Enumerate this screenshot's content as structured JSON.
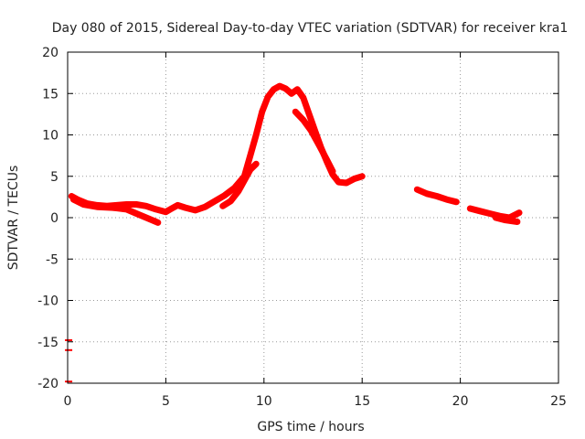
{
  "chart_data": {
    "type": "scatter",
    "title": "Day 080 of 2015, Sidereal Day-to-day VTEC variation (SDTVAR) for receiver kra1",
    "xlabel": "GPS time / hours",
    "ylabel": "SDTVAR / TECUs",
    "xlim": [
      0,
      25
    ],
    "ylim": [
      -20,
      20
    ],
    "xticks": [
      0,
      5,
      10,
      15,
      20,
      25
    ],
    "yticks": [
      -20,
      -15,
      -10,
      -5,
      0,
      5,
      10,
      15,
      20
    ],
    "xtick_labels": [
      "0",
      "5",
      "10",
      "15",
      "20",
      "25"
    ],
    "ytick_labels": [
      "-20",
      "-15",
      "-10",
      "-5",
      "0",
      "5",
      "10",
      "15",
      "20"
    ],
    "grid": true,
    "color": "#ff0000",
    "series": [
      {
        "name": "arc-main",
        "points": [
          [
            0.2,
            2.6
          ],
          [
            0.5,
            2.2
          ],
          [
            1.0,
            1.7
          ],
          [
            1.5,
            1.5
          ],
          [
            2.0,
            1.4
          ],
          [
            2.5,
            1.5
          ],
          [
            3.0,
            1.6
          ],
          [
            3.5,
            1.6
          ],
          [
            4.0,
            1.4
          ],
          [
            4.5,
            1.0
          ],
          [
            5.0,
            0.7
          ],
          [
            5.3,
            1.1
          ],
          [
            5.6,
            1.5
          ],
          [
            6.0,
            1.2
          ],
          [
            6.5,
            0.9
          ],
          [
            7.0,
            1.3
          ],
          [
            7.5,
            2.0
          ],
          [
            8.0,
            2.7
          ],
          [
            8.5,
            3.6
          ],
          [
            9.0,
            5.0
          ],
          [
            9.3,
            7.5
          ],
          [
            9.6,
            10.0
          ],
          [
            9.9,
            12.8
          ],
          [
            10.2,
            14.6
          ],
          [
            10.5,
            15.5
          ],
          [
            10.8,
            15.9
          ],
          [
            11.1,
            15.6
          ],
          [
            11.4,
            15.0
          ],
          [
            11.7,
            15.5
          ],
          [
            12.0,
            14.5
          ],
          [
            12.3,
            12.5
          ],
          [
            12.6,
            10.5
          ],
          [
            12.9,
            8.5
          ],
          [
            13.2,
            6.8
          ],
          [
            13.5,
            5.2
          ],
          [
            13.8,
            4.3
          ],
          [
            14.2,
            4.2
          ],
          [
            14.6,
            4.7
          ],
          [
            15.0,
            5.0
          ]
        ]
      },
      {
        "name": "arc-low",
        "points": [
          [
            0.3,
            2.2
          ],
          [
            0.8,
            1.6
          ],
          [
            1.5,
            1.3
          ],
          [
            2.3,
            1.2
          ],
          [
            3.0,
            1.0
          ],
          [
            3.6,
            0.4
          ],
          [
            4.1,
            -0.1
          ],
          [
            4.6,
            -0.6
          ]
        ]
      },
      {
        "name": "arc-side",
        "points": [
          [
            7.9,
            1.4
          ],
          [
            8.3,
            2.0
          ],
          [
            8.7,
            3.2
          ],
          [
            9.0,
            4.5
          ],
          [
            9.3,
            5.8
          ],
          [
            9.6,
            6.5
          ]
        ]
      },
      {
        "name": "arc-descend",
        "points": [
          [
            11.6,
            12.8
          ],
          [
            12.0,
            11.8
          ],
          [
            12.4,
            10.5
          ],
          [
            12.8,
            8.8
          ],
          [
            13.2,
            7.0
          ],
          [
            13.5,
            5.6
          ]
        ]
      },
      {
        "name": "arc-evening",
        "points": [
          [
            17.8,
            3.4
          ],
          [
            18.3,
            2.9
          ],
          [
            18.8,
            2.6
          ],
          [
            19.3,
            2.2
          ],
          [
            19.8,
            1.9
          ]
        ]
      },
      {
        "name": "arc-late",
        "points": [
          [
            20.5,
            1.1
          ],
          [
            21.0,
            0.8
          ],
          [
            21.5,
            0.5
          ],
          [
            22.0,
            0.2
          ],
          [
            22.5,
            0.0
          ],
          [
            23.0,
            0.6
          ]
        ]
      },
      {
        "name": "arc-late-low",
        "points": [
          [
            21.8,
            0.0
          ],
          [
            22.3,
            -0.3
          ],
          [
            22.9,
            -0.5
          ]
        ]
      },
      {
        "name": "outliers",
        "points": [
          [
            0.05,
            -14.8
          ],
          [
            0.05,
            -16.0
          ],
          [
            0.05,
            -19.8
          ]
        ]
      }
    ]
  }
}
